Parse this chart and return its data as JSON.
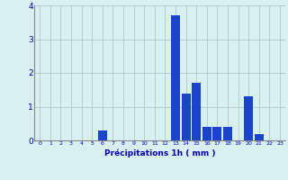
{
  "hours": [
    0,
    1,
    2,
    3,
    4,
    5,
    6,
    7,
    8,
    9,
    10,
    11,
    12,
    13,
    14,
    15,
    16,
    17,
    18,
    19,
    20,
    21,
    22,
    23
  ],
  "values": [
    0,
    0,
    0,
    0,
    0,
    0,
    0.3,
    0,
    0,
    0,
    0,
    0,
    0,
    3.7,
    1.4,
    1.7,
    0.4,
    0.4,
    0.4,
    0,
    1.3,
    0.2,
    0,
    0
  ],
  "bar_color": "#1a44cc",
  "background_color": "#d8f0f0",
  "grid_color": "#aacaca",
  "xlabel": "Précipitations 1h ( mm )",
  "xlabel_color": "#0000bb",
  "tick_color": "#0000bb",
  "ylim": [
    0,
    4
  ],
  "yticks": [
    0,
    1,
    2,
    3,
    4
  ],
  "spine_color": "#888888"
}
